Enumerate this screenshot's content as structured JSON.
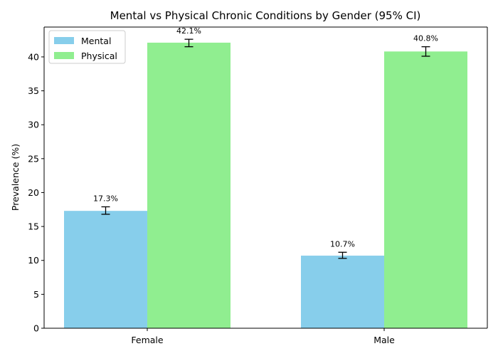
{
  "chart_data": {
    "type": "bar",
    "title": "Mental vs Physical Chronic Conditions by Gender (95% CI)",
    "xlabel": "",
    "ylabel": "Prevalence (%)",
    "categories": [
      "Female",
      "Male"
    ],
    "series": [
      {
        "name": "Mental",
        "color": "#87ceeb",
        "values": [
          17.3,
          10.7
        ],
        "ci_low": [
          16.8,
          10.3
        ],
        "ci_high": [
          17.9,
          11.2
        ],
        "labels": [
          "17.3%",
          "10.7%"
        ]
      },
      {
        "name": "Physical",
        "color": "#90ee90",
        "values": [
          42.1,
          40.8
        ],
        "ci_low": [
          41.5,
          40.1
        ],
        "ci_high": [
          42.6,
          41.5
        ],
        "labels": [
          "42.1%",
          "40.8%"
        ]
      }
    ],
    "ylim": [
      0,
      44.4
    ],
    "yticks": [
      0,
      5,
      10,
      15,
      20,
      25,
      30,
      35,
      40
    ],
    "legend_position": "top-left",
    "grid": false
  }
}
